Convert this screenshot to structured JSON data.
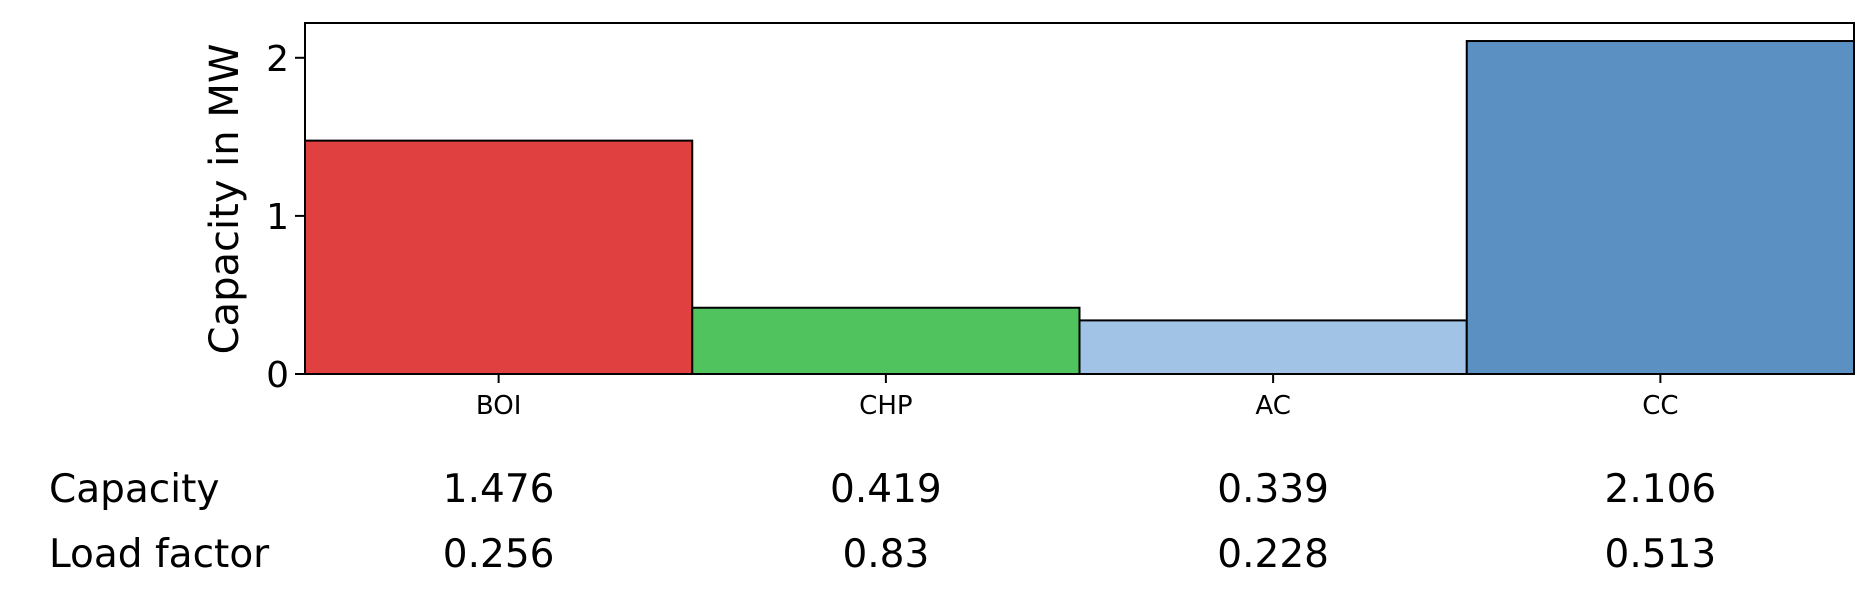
{
  "chart_data": {
    "type": "bar",
    "categories": [
      "BOI",
      "CHP",
      "AC",
      "CC"
    ],
    "values": [
      1.476,
      0.419,
      0.339,
      2.106
    ],
    "colors": [
      "#e04040",
      "#50c35e",
      "#a0c3e6",
      "#5b90c3"
    ],
    "title": "",
    "xlabel": "",
    "ylabel": "Capacity in MW",
    "ylim": [
      0,
      2.22
    ],
    "yticks": [
      0,
      1,
      2
    ],
    "grid": false,
    "table": {
      "rows": [
        {
          "label": "Capacity",
          "values": [
            "1.476",
            "0.419",
            "0.339",
            "2.106"
          ]
        },
        {
          "label": "Load factor",
          "values": [
            "0.256",
            "0.83",
            "0.228",
            "0.513"
          ]
        }
      ]
    }
  }
}
